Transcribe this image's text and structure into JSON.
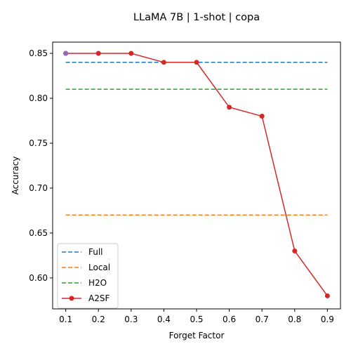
{
  "chart_data": {
    "type": "line",
    "title": "LLaMA 7B | 1-shot | copa",
    "xlabel": "Forget Factor",
    "ylabel": "Accuracy",
    "xlim": [
      0.06,
      0.94
    ],
    "ylim": [
      0.5655,
      0.8625
    ],
    "xticks": [
      0.1,
      0.2,
      0.3,
      0.4,
      0.5,
      0.6,
      0.7,
      0.8,
      0.9
    ],
    "xtick_labels": [
      "0.1",
      "0.2",
      "0.3",
      "0.4",
      "0.5",
      "0.6",
      "0.7",
      "0.8",
      "0.9"
    ],
    "yticks": [
      0.6,
      0.65,
      0.7,
      0.75,
      0.8,
      0.85
    ],
    "ytick_labels": [
      "0.60",
      "0.65",
      "0.70",
      "0.75",
      "0.80",
      "0.85"
    ],
    "grid": false,
    "legend_position": "lower-left",
    "series": [
      {
        "name": "Full",
        "style": "dashed",
        "color": "#1f77b4",
        "x": [
          0.1,
          0.9
        ],
        "y": [
          0.84,
          0.84
        ]
      },
      {
        "name": "Local",
        "style": "dashed",
        "color": "#ff7f0e",
        "x": [
          0.1,
          0.9
        ],
        "y": [
          0.67,
          0.67
        ]
      },
      {
        "name": "H2O",
        "style": "dashed",
        "color": "#2ca02c",
        "x": [
          0.1,
          0.9
        ],
        "y": [
          0.81,
          0.81
        ]
      },
      {
        "name": "A2SF",
        "style": "solid-marker",
        "color": "#d62728",
        "x": [
          0.1,
          0.2,
          0.3,
          0.4,
          0.5,
          0.6,
          0.7,
          0.8,
          0.9
        ],
        "y": [
          0.85,
          0.85,
          0.85,
          0.84,
          0.84,
          0.79,
          0.78,
          0.63,
          0.58
        ]
      }
    ],
    "highlight_point": {
      "x": 0.1,
      "y": 0.85,
      "color": "#9467bd"
    }
  }
}
